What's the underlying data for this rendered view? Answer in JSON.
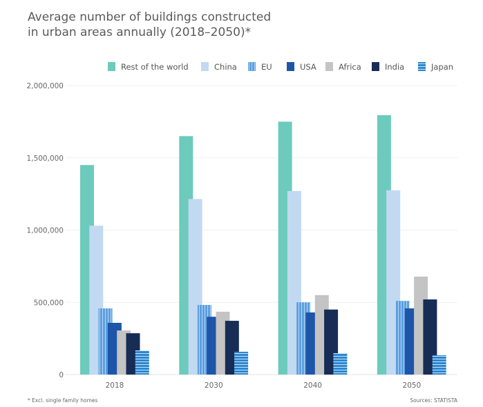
{
  "chart_data": {
    "type": "bar",
    "title": "Average number of buildings constructed\nin urban areas annually  (2018–2050)*",
    "categories": [
      "2018",
      "2030",
      "2040",
      "2050"
    ],
    "series": [
      {
        "name": "Rest of the world",
        "color": "#6ccbbd",
        "pattern": "solid",
        "values": [
          1450000,
          1650000,
          1750000,
          1795000
        ]
      },
      {
        "name": "China",
        "color": "#c2d9f2",
        "pattern": "solid",
        "values": [
          1030000,
          1215000,
          1270000,
          1275000
        ]
      },
      {
        "name": "EU",
        "color": "#5c9fe0",
        "pattern": "vertical-stripes",
        "values": [
          458000,
          482000,
          500000,
          510000
        ]
      },
      {
        "name": "USA",
        "color": "#1d56a8",
        "pattern": "solid",
        "values": [
          358000,
          400000,
          430000,
          458000
        ]
      },
      {
        "name": "Africa",
        "color": "#c4c4c4",
        "pattern": "solid",
        "values": [
          305000,
          435000,
          550000,
          678000
        ]
      },
      {
        "name": "India",
        "color": "#172d55",
        "pattern": "solid",
        "values": [
          286000,
          372000,
          450000,
          520000
        ]
      },
      {
        "name": "Japan",
        "color": "#2c86cf",
        "pattern": "horizontal-stripes",
        "values": [
          167000,
          158000,
          148000,
          134000
        ]
      }
    ],
    "ylim": [
      0,
      2000000
    ],
    "yticks": [
      "0",
      "500,000",
      "1,000,000",
      "1,500,000",
      "2,000,000"
    ],
    "grid": true,
    "legend": "top-right",
    "footnote": "* Excl. single family homes",
    "source": "Sources: STATISTA"
  }
}
